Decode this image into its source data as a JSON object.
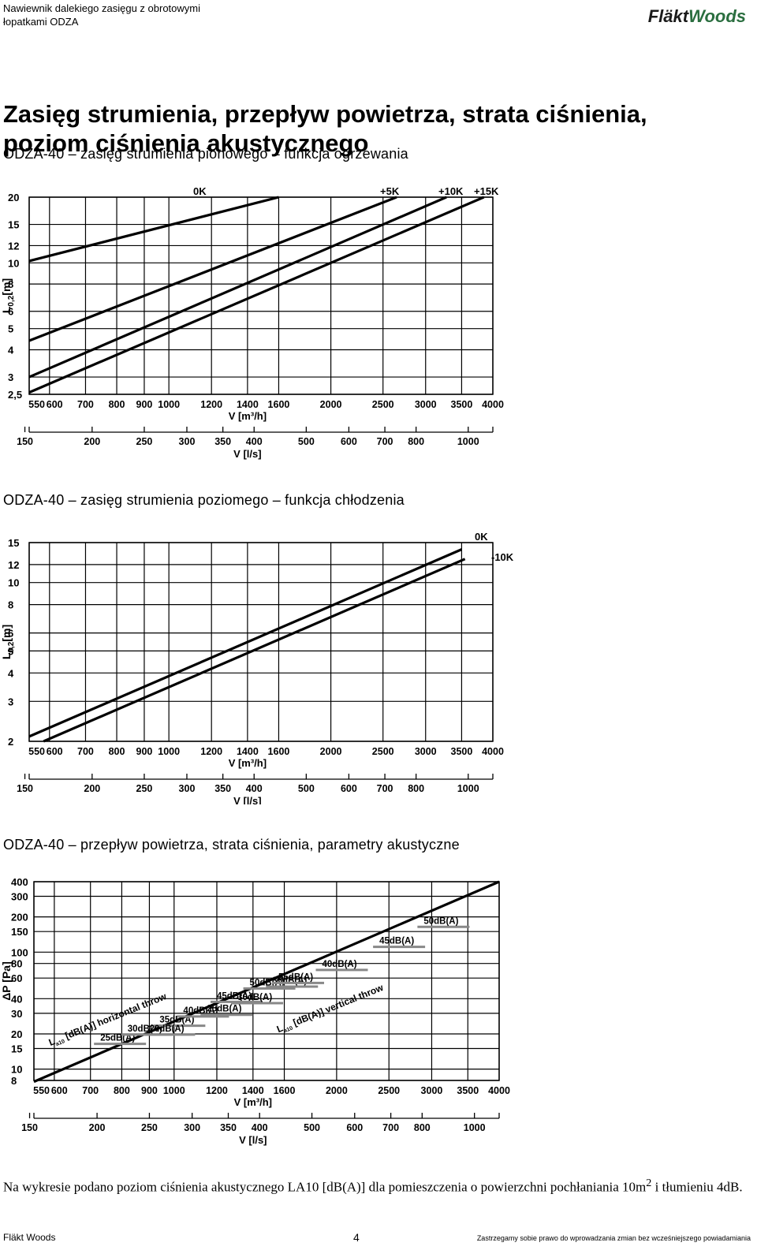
{
  "header": {
    "product_line1": "Nawiewnik dalekiego zasięgu z obrotowymi",
    "product_line2": "łopatkami ODZA",
    "logo_part1": "Fläkt",
    "logo_part2": "Woods"
  },
  "title_line1": "Zasięg strumienia, przepływ powietrza, strata ciśnienia,",
  "title_line2": "poziom ciśnienia akustycznego",
  "sections": [
    {
      "title": "ODZA-40 – zasięg strumienia pionowego – funkcja ogrzewania"
    },
    {
      "title": "ODZA-40 – zasięg strumienia poziomego – funkcja chłodzenia"
    },
    {
      "title": "ODZA-40 – przepływ powietrza, strata ciśnienia, parametry akustyczne"
    }
  ],
  "chart_data": [
    {
      "type": "line",
      "xscale": "log",
      "yscale": "log",
      "ylabel": "L",
      "ylabel_sub": "0,2",
      "ylabel_unit": "[m]",
      "xlabel_m3h": "V [m³/h]",
      "xlabel_ls": "V [l/s]",
      "xlim": [
        550,
        4000
      ],
      "ylim": [
        2.5,
        20
      ],
      "x_ticks_m3h": [
        "550",
        "600",
        "700",
        "800",
        "900",
        "1000",
        "1200",
        "1400",
        "1600",
        "2000",
        "2500",
        "3000",
        "3500",
        "4000"
      ],
      "x_ticks_ls": [
        "150",
        "200",
        "250",
        "300",
        "350",
        "400",
        "500",
        "600",
        "700",
        "800",
        "1000"
      ],
      "y_ticks": [
        "2,5",
        "3",
        "4",
        "5",
        "6",
        "8",
        "10",
        "12",
        "15",
        "20"
      ],
      "series": [
        {
          "name": "0K",
          "points": [
            [
              550,
              10.2
            ],
            [
              1600,
              20
            ]
          ]
        },
        {
          "name": "+5K",
          "points": [
            [
              550,
              4.4
            ],
            [
              2650,
              20
            ]
          ]
        },
        {
          "name": "+10K",
          "points": [
            [
              550,
              3.0
            ],
            [
              3280,
              20
            ]
          ]
        },
        {
          "name": "+15K",
          "points": [
            [
              550,
              2.55
            ],
            [
              3850,
              20
            ]
          ]
        }
      ]
    },
    {
      "type": "line",
      "xscale": "log",
      "yscale": "log",
      "ylabel": "L",
      "ylabel_sub": "0,2",
      "ylabel_unit": "[m]",
      "xlabel_m3h": "V [m³/h]",
      "xlabel_ls": "V [l/s]",
      "xlim": [
        550,
        4000
      ],
      "ylim": [
        2,
        15
      ],
      "x_ticks_m3h": [
        "550",
        "600",
        "700",
        "800",
        "900",
        "1000",
        "1200",
        "1400",
        "1600",
        "2000",
        "2500",
        "3000",
        "3500",
        "4000"
      ],
      "x_ticks_ls": [
        "150",
        "200",
        "250",
        "300",
        "350",
        "400",
        "500",
        "600",
        "700",
        "800",
        "1000"
      ],
      "y_ticks": [
        "2",
        "3",
        "4",
        "5",
        "6",
        "8",
        "10",
        "12",
        "15"
      ],
      "series": [
        {
          "name": "0K",
          "points": [
            [
              550,
              2.1
            ],
            [
              3500,
              14.0
            ]
          ]
        },
        {
          "name": "-10K",
          "points": [
            [
              585,
              2.0
            ],
            [
              3550,
              12.7
            ]
          ]
        }
      ]
    },
    {
      "type": "line",
      "xscale": "log",
      "yscale": "log",
      "ylabel": "ΔP [Pa]",
      "xlabel_m3h": "V [m³/h]",
      "xlabel_ls": "V [l/s]",
      "xlim": [
        550,
        4000
      ],
      "ylim": [
        8,
        400
      ],
      "x_ticks_m3h": [
        "550",
        "600",
        "700",
        "800",
        "900",
        "1000",
        "1200",
        "1400",
        "1600",
        "2000",
        "2500",
        "3000",
        "3500",
        "4000"
      ],
      "x_ticks_ls": [
        "150",
        "200",
        "250",
        "300",
        "350",
        "400",
        "500",
        "600",
        "700",
        "800",
        "1000"
      ],
      "y_ticks": [
        "8",
        "10",
        "15",
        "20",
        "30",
        "40",
        "60",
        "80",
        "100",
        "150",
        "200",
        "300",
        "400"
      ],
      "series": [
        {
          "name": "ΔP",
          "points": [
            [
              550,
              7.8
            ],
            [
              4000,
              400
            ]
          ]
        }
      ],
      "group_labels": [
        {
          "text": "L",
          "sub": "a10",
          "rest": " [dB(A)] horizontal throw"
        },
        {
          "text": "L",
          "sub": "a10",
          "rest": " [dB(A)] vertical throw"
        }
      ],
      "annotations": [
        {
          "text": "25dB(A)",
          "x": 730,
          "y": 17.5
        },
        {
          "text": "30dB(A)",
          "x": 820,
          "y": 21
        },
        {
          "text": "35dB(A)",
          "x": 940,
          "y": 25
        },
        {
          "text": "40dB(A)",
          "x": 1040,
          "y": 30
        },
        {
          "text": "45dB(A)",
          "x": 1200,
          "y": 40
        },
        {
          "text": "50dB(A)",
          "x": 1380,
          "y": 52
        },
        {
          "text": "20dB(A)",
          "x": 900,
          "y": 21
        },
        {
          "text": "25dB(A)",
          "x": 1150,
          "y": 31
        },
        {
          "text": "30dB(A)",
          "x": 1310,
          "y": 39
        },
        {
          "text": "35dB(A)",
          "x": 1520,
          "y": 54
        },
        {
          "text": "55dB(A)",
          "x": 1560,
          "y": 58
        },
        {
          "text": "40dB(A)",
          "x": 1880,
          "y": 75
        },
        {
          "text": "45dB(A)",
          "x": 2400,
          "y": 118
        },
        {
          "text": "50dB(A)",
          "x": 2900,
          "y": 175
        }
      ]
    }
  ],
  "note_text": "Na wykresie podano poziom ciśnienia akustycznego LA10 [dB(A)] dla pomieszczenia o powierzchni pochłaniania 10m",
  "note_sup": "2",
  "note_text2": "i tłumieniu 4dB.",
  "footer": {
    "company": "Fläkt Woods",
    "page": "4",
    "disclaimer": "Zastrzegamy sobie prawo do wprowadzania zmian bez wcześniejszego powiadamiania"
  }
}
